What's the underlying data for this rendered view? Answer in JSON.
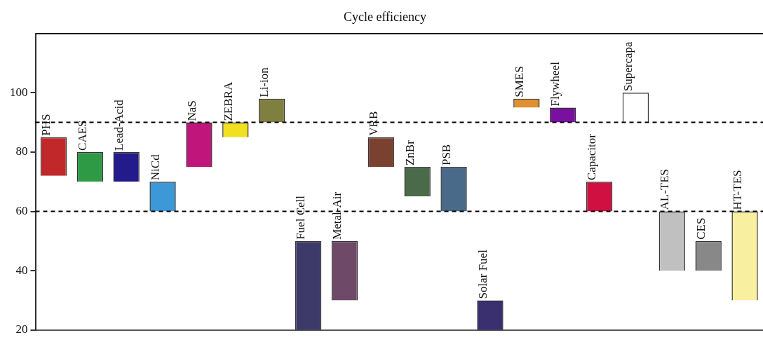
{
  "chart_data": {
    "type": "bar",
    "title": "Cycle efficiency",
    "categories": [
      "PHS",
      "CAES",
      "Lead-Acid",
      "NiCd",
      "NaS",
      "ZEBRA",
      "Li-ion",
      "Fuel Cell",
      "Metal-Air",
      "VRB",
      "ZnBr",
      "PSB",
      "Solar Fuel",
      "SMES",
      "Flywheel",
      "Capacitor",
      "Supercapa",
      "AL-TES",
      "CES",
      "HT-TES"
    ],
    "base": [
      72,
      70,
      70,
      60,
      75,
      85,
      90,
      20,
      30,
      75,
      65,
      60,
      20,
      95,
      90,
      60,
      90,
      40,
      40,
      30
    ],
    "values": [
      13,
      10,
      10,
      10,
      15,
      5,
      8,
      30,
      20,
      10,
      10,
      15,
      10,
      3,
      5,
      10,
      10,
      20,
      10,
      30
    ],
    "colors": [
      "#c0282a",
      "#2e9a46",
      "#231a8c",
      "#3d98d8",
      "#c0157a",
      "#f0e020",
      "#7f8040",
      "#3d3a6a",
      "#6e4a68",
      "#7a4030",
      "#4a6a4a",
      "#4a6a8a",
      "#3a3070",
      "#e09030",
      "#7a10a0",
      "#d01040",
      "#ffffff",
      "#c0c0c0",
      "#888888",
      "#f8f0a0"
    ],
    "ylim": [
      20,
      120
    ],
    "yticks": [
      20,
      40,
      60,
      80,
      100
    ],
    "ref_lines": [
      {
        "axis": "y",
        "value": 90,
        "line_style": "dashed",
        "color": "#000000"
      },
      {
        "axis": "y",
        "value": 60,
        "line_style": "dashed",
        "color": "#000000"
      }
    ],
    "tick_labels": "y",
    "grid": false,
    "legend": false
  }
}
